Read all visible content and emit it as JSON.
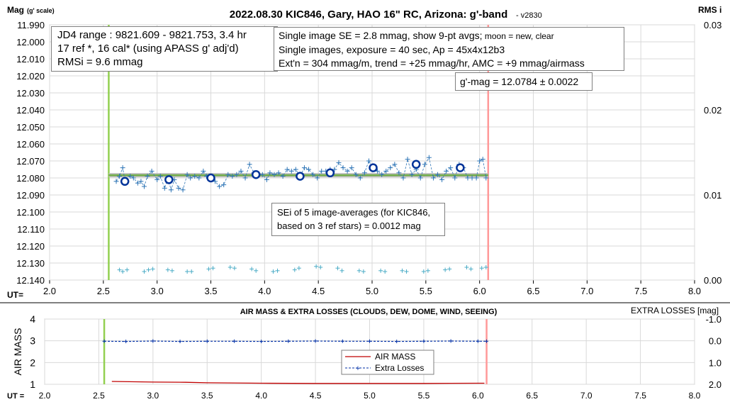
{
  "top_chart": {
    "title": "2022.08.30 KIC846, Gary, HAO 16\" RC, Arizona: g'-band",
    "version": "- v2830",
    "ylabel_main": "Mag",
    "ylabel_sub": "(g' scale)",
    "y2label": "RMS i",
    "xlabel": "UT=",
    "info_left": [
      "JD4 range : 9821.609 - 9821.753,  3.4 hr",
      "17 ref *, 16 cal* (using APASS g' adj'd)",
      "RMSi = 9.6 mmag"
    ],
    "info_right_line1_main": "Single image SE = 2.8 mmag, show  9-pt avgs;",
    "info_right_line1_small": " moon = new, clear",
    "info_right_line2": "Single images, exposure = 40 sec, Ap = 45x4x12b3",
    "info_right_line3": "Ext'n = 304 mmag/m, trend = +25 mmag/hr, AMC = +9 mmag/airmass",
    "result": "g'-mag = 12.0784 ± 0.0022",
    "sei_line1": "SEi of 5 image-averages (for KIC846,",
    "sei_line2": "based on 3 ref stars) = 0.0012 mag"
  },
  "bottom_chart": {
    "title": "AIR MASS & EXTRA LOSSES (CLOUDS, DEW, DOME, WIND, SEEING)",
    "y2label": "EXTRA LOSSES [mag]",
    "ylabel": "AIR MASS",
    "xlabel": "UT =",
    "legend": [
      "AIR MASS",
      "Extra Losses"
    ]
  },
  "chart_data": [
    {
      "type": "scatter",
      "title": "2022.08.30 KIC846, Gary, HAO 16\" RC, Arizona: g'-band",
      "xlabel": "UT=",
      "ylabel": "Mag (g' scale)",
      "y2label": "RMS i",
      "xlim": [
        2.0,
        8.0
      ],
      "ylim": [
        11.99,
        12.14
      ],
      "y_inverted": true,
      "y2lim": [
        0.0,
        0.03
      ],
      "x_ticks": [
        "2.0",
        "2.5",
        "3.0",
        "3.5",
        "4.0",
        "4.5",
        "5.0",
        "5.5",
        "6.0",
        "6.5",
        "7.0",
        "7.5",
        "8.0"
      ],
      "y_ticks": [
        "11.990",
        "12.000",
        "12.010",
        "12.020",
        "12.030",
        "12.040",
        "12.050",
        "12.060",
        "12.070",
        "12.080",
        "12.090",
        "12.100",
        "12.110",
        "12.120",
        "12.130",
        "12.140"
      ],
      "y2_ticks": [
        "0.00",
        "0.01",
        "0.02",
        "0.03"
      ],
      "vlines": [
        {
          "x": 2.55,
          "color": "#92d050"
        },
        {
          "x": 6.08,
          "color": "#ff9999"
        }
      ],
      "fit_line": {
        "x": [
          2.55,
          6.08
        ],
        "y": [
          12.0784,
          12.0784
        ],
        "color": "#70ad47"
      },
      "series": [
        {
          "name": "",
          "marker": "+",
          "color": "#2e75b6",
          "x": [
            2.62,
            2.65,
            2.68,
            2.7,
            2.75,
            2.78,
            2.82,
            2.85,
            2.88,
            2.91,
            2.95,
            3.0,
            3.03,
            3.07,
            3.1,
            3.13,
            3.16,
            3.2,
            3.24,
            3.28,
            3.31,
            3.35,
            3.39,
            3.43,
            3.46,
            3.5,
            3.54,
            3.58,
            3.62,
            3.66,
            3.7,
            3.74,
            3.78,
            3.82,
            3.86,
            3.9,
            3.94,
            3.98,
            4.02,
            4.05,
            4.09,
            4.13,
            4.17,
            4.21,
            4.25,
            4.29,
            4.33,
            4.37,
            4.41,
            4.45,
            4.49,
            4.53,
            4.57,
            4.61,
            4.65,
            4.69,
            4.73,
            4.77,
            4.81,
            4.85,
            4.89,
            4.93,
            4.97,
            5.01,
            5.05,
            5.09,
            5.13,
            5.17,
            5.21,
            5.25,
            5.29,
            5.33,
            5.37,
            5.41,
            5.45,
            5.49,
            5.53,
            5.57,
            5.61,
            5.65,
            5.69,
            5.73,
            5.77,
            5.81,
            5.85,
            5.89,
            5.93,
            5.97,
            6.0,
            6.03,
            6.06
          ],
          "y": [
            12.082,
            12.079,
            12.074,
            12.081,
            12.079,
            12.08,
            12.083,
            12.082,
            12.085,
            12.079,
            12.076,
            12.081,
            12.079,
            12.086,
            12.08,
            12.087,
            12.081,
            12.086,
            12.087,
            12.078,
            12.08,
            12.079,
            12.08,
            12.076,
            12.079,
            12.08,
            12.082,
            12.085,
            12.084,
            12.078,
            12.079,
            12.078,
            12.076,
            12.08,
            12.072,
            12.077,
            12.078,
            12.078,
            12.081,
            12.077,
            12.078,
            12.077,
            12.079,
            12.075,
            12.076,
            12.075,
            12.079,
            12.074,
            12.075,
            12.078,
            12.08,
            12.076,
            12.076,
            12.075,
            12.075,
            12.071,
            12.074,
            12.076,
            12.074,
            12.078,
            12.08,
            12.077,
            12.07,
            12.074,
            12.076,
            12.078,
            12.076,
            12.074,
            12.072,
            12.077,
            12.08,
            12.069,
            12.078,
            12.075,
            12.08,
            12.072,
            12.068,
            12.08,
            12.078,
            12.081,
            12.076,
            12.074,
            12.08,
            12.072,
            12.074,
            12.08,
            12.08,
            12.08,
            12.07,
            12.069,
            12.08
          ]
        },
        {
          "name": "",
          "marker": "o",
          "color": "#003399",
          "x": [
            2.7,
            3.11,
            3.5,
            3.92,
            4.33,
            4.61,
            5.01,
            5.41,
            5.82
          ],
          "y": [
            12.082,
            12.081,
            12.08,
            12.078,
            12.079,
            12.077,
            12.074,
            12.072,
            12.074
          ]
        },
        {
          "name": "",
          "marker": "+",
          "axis": "y2",
          "color": "#4bacc6",
          "x": [
            2.65,
            2.68,
            2.72,
            2.88,
            2.92,
            2.96,
            3.1,
            3.14,
            3.28,
            3.32,
            3.48,
            3.52,
            3.68,
            3.72,
            3.88,
            3.92,
            4.08,
            4.12,
            4.28,
            4.32,
            4.48,
            4.52,
            4.68,
            4.72,
            4.88,
            4.92,
            5.08,
            5.12,
            5.28,
            5.32,
            5.48,
            5.52,
            5.68,
            5.72,
            5.88,
            5.92,
            6.02,
            6.06
          ],
          "y": [
            0.0012,
            0.001,
            0.0012,
            0.001,
            0.0012,
            0.0013,
            0.0012,
            0.0011,
            0.001,
            0.001,
            0.0013,
            0.0014,
            0.0015,
            0.0014,
            0.0013,
            0.0011,
            0.001,
            0.0011,
            0.0012,
            0.0014,
            0.0016,
            0.0015,
            0.0014,
            0.0011,
            0.0011,
            0.001,
            0.0011,
            0.001,
            0.0011,
            0.001,
            0.001,
            0.0011,
            0.0012,
            0.0013,
            0.0015,
            0.0013,
            0.0014,
            0.0015
          ]
        }
      ]
    },
    {
      "type": "line",
      "title": "AIR MASS & EXTRA LOSSES (CLOUDS, DEW, DOME, WIND, SEEING)",
      "xlabel": "UT =",
      "ylabel": "AIR MASS",
      "y2label": "EXTRA LOSSES [mag]",
      "xlim": [
        2.0,
        8.0
      ],
      "ylim": [
        1,
        4
      ],
      "y2lim": [
        2.0,
        -1.0
      ],
      "x_ticks": [
        "2.0",
        "2.5",
        "3.0",
        "3.5",
        "4.0",
        "4.5",
        "5.0",
        "5.5",
        "6.0",
        "6.5",
        "7.0",
        "7.5",
        "8.0"
      ],
      "y_ticks": [
        "1",
        "2",
        "3",
        "4"
      ],
      "y2_ticks": [
        "-1.0",
        "0.0",
        "1.0",
        "2.0"
      ],
      "vlines": [
        {
          "x": 2.55,
          "color": "#92d050"
        },
        {
          "x": 6.08,
          "color": "#ff9999"
        }
      ],
      "legend_position": "bottom-center",
      "series": [
        {
          "name": "AIR MASS",
          "color": "#c00000",
          "x": [
            2.62,
            3.0,
            3.3,
            3.5,
            4.0,
            4.5,
            5.0,
            5.5,
            6.0,
            6.06
          ],
          "y": [
            1.13,
            1.1,
            1.09,
            1.07,
            1.05,
            1.04,
            1.04,
            1.04,
            1.05,
            1.05
          ]
        },
        {
          "name": "Extra Losses",
          "color": "#002fa7",
          "axis": "y2",
          "x": [
            2.55,
            2.75,
            3.0,
            3.25,
            3.5,
            3.75,
            4.0,
            4.25,
            4.5,
            4.75,
            5.0,
            5.25,
            5.5,
            5.75,
            6.0,
            6.08
          ],
          "y": [
            0.02,
            0.03,
            0.01,
            0.03,
            0.02,
            0.02,
            0.03,
            0.02,
            0.01,
            0.02,
            0.02,
            0.03,
            0.02,
            0.01,
            0.02,
            0.02
          ]
        }
      ]
    }
  ]
}
